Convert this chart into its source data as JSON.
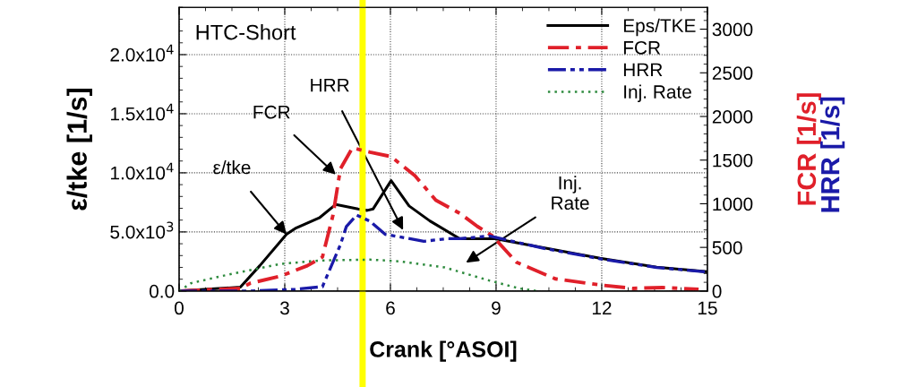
{
  "chart_data": {
    "type": "line",
    "title": "HTC-Short",
    "xlabel": "Crank [°ASOI]",
    "ylabel": "ε/tke [1/s]",
    "y2label": "FCR [1/s]",
    "y3label": "HRR [1/s]",
    "xlim": [
      0,
      15
    ],
    "xticks": [
      0,
      3,
      6,
      9,
      12,
      15
    ],
    "ylim": [
      0,
      24000
    ],
    "yticks": [
      {
        "value": 0,
        "label": "0.0"
      },
      {
        "value": 5000,
        "label": "5.0x10$^{3}$"
      },
      {
        "value": 10000,
        "label": "1.0x10$^{4}$"
      },
      {
        "value": 15000,
        "label": "1.5x10$^{4}$"
      },
      {
        "value": 20000,
        "label": "2.0x10$^{4}$"
      }
    ],
    "y2lim": [
      0,
      3250
    ],
    "y2ticks": [
      0,
      500,
      1000,
      1500,
      2000,
      2500,
      3000
    ],
    "grid": true,
    "legend": "top right",
    "series": [
      {
        "name": "Eps/TKE",
        "color": "#000000",
        "line_style": "solid",
        "x": [
          0,
          1.74,
          2.29,
          3.05,
          3.3,
          3.98,
          4.45,
          5.08,
          5.34,
          5.51,
          6.02,
          6.53,
          7.12,
          7.97,
          8.47,
          8.98,
          10.34,
          11.95,
          13.56,
          14.96
        ],
        "values": [
          0,
          330,
          2140,
          4800,
          5300,
          6190,
          7330,
          6950,
          6820,
          6950,
          9340,
          7200,
          5930,
          4420,
          4420,
          4420,
          3660,
          2780,
          2020,
          1640
        ]
      },
      {
        "name": "FCR",
        "color": "#e0202a",
        "line_style": "dashdot",
        "axis": "y2",
        "x": [
          0,
          1.74,
          2.03,
          2.88,
          3.64,
          4.07,
          4.37,
          4.58,
          4.92,
          5.42,
          6.02,
          6.7,
          7.29,
          7.97,
          8.47,
          8.9,
          9.58,
          10.68,
          11.95,
          12.88,
          13.73,
          14.75
        ],
        "values": [
          0,
          30,
          90,
          170,
          290,
          390,
          870,
          1400,
          1640,
          1590,
          1540,
          1320,
          1040,
          890,
          740,
          630,
          330,
          140,
          70,
          30,
          40,
          20
        ]
      },
      {
        "name": "HRR",
        "color": "#1a1aa8",
        "line_style": "dashdotdot",
        "axis": "y2",
        "x": [
          0,
          2.03,
          3.3,
          4.07,
          4.58,
          4.75,
          5.04,
          5.42,
          5.85,
          6.95,
          7.63,
          7.97,
          8.81,
          10.34,
          11.95,
          13.56,
          14.96
        ],
        "values": [
          0,
          0,
          20,
          50,
          530,
          740,
          870,
          800,
          650,
          570,
          600,
          600,
          630,
          490,
          370,
          270,
          220
        ]
      },
      {
        "name": "Inj. Rate",
        "color": "#2e8b3e",
        "line_style": "dotted",
        "axis": "y2",
        "x": [
          0,
          0.34,
          1.19,
          2.03,
          2.88,
          3.98,
          5.42,
          6.27,
          7.54,
          8.81,
          9.66,
          10.17
        ],
        "values": [
          0,
          90,
          170,
          240,
          310,
          350,
          360,
          340,
          270,
          120,
          30,
          0
        ]
      }
    ],
    "annotations": [
      {
        "text": "ε/tke",
        "x": 3.05,
        "y": 4800
      },
      {
        "text": "FCR",
        "x": 4.45,
        "y": 9850
      },
      "HRR",
      "Inj.\nRate"
    ],
    "ref_lines": [
      {
        "axis": "x",
        "value": 5.21,
        "color": "#ffff00"
      }
    ]
  }
}
